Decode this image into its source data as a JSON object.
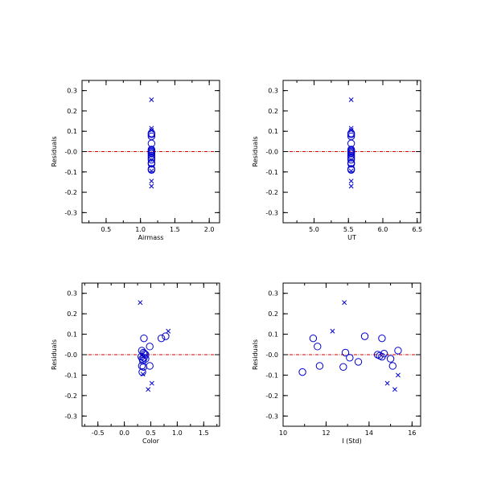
{
  "colors": {
    "marker": "#0000cc",
    "zero_line": "#cc0000",
    "axis": "#000000"
  },
  "chart_data": [
    {
      "type": "scatter",
      "xlabel": "Airmass",
      "ylabel": "Residuals",
      "xlim": [
        0.15,
        2.15
      ],
      "ylim": [
        -0.35,
        0.35
      ],
      "xticks": [
        "0.5",
        "1.0",
        "1.5",
        "2.0"
      ],
      "yticks": [
        "-0.3",
        "-0.2",
        "-0.1",
        "-0.0",
        "0.1",
        "0.2",
        "0.3"
      ],
      "zero_line": 0,
      "series": [
        {
          "marker": "circle",
          "points": [
            [
              1.16,
              0.085
            ],
            [
              1.16,
              0.075
            ],
            [
              1.16,
              0.04
            ],
            [
              1.16,
              0.01
            ],
            [
              1.16,
              0.005
            ],
            [
              1.16,
              0.0
            ],
            [
              1.16,
              -0.005
            ],
            [
              1.16,
              -0.01
            ],
            [
              1.16,
              -0.02
            ],
            [
              1.16,
              -0.04
            ],
            [
              1.16,
              -0.055
            ],
            [
              1.16,
              -0.06
            ],
            [
              1.16,
              -0.085
            ],
            [
              1.16,
              -0.09
            ],
            [
              1.16,
              0.09
            ],
            [
              1.16,
              -0.03
            ]
          ]
        },
        {
          "marker": "x",
          "points": [
            [
              1.16,
              0.255
            ],
            [
              1.16,
              0.115
            ],
            [
              1.16,
              0.105
            ],
            [
              1.16,
              -0.095
            ],
            [
              1.16,
              -0.145
            ],
            [
              1.16,
              -0.17
            ]
          ]
        }
      ]
    },
    {
      "type": "scatter",
      "xlabel": "UT",
      "ylabel": "Residuals",
      "xlim": [
        4.55,
        6.55
      ],
      "ylim": [
        -0.35,
        0.35
      ],
      "xticks": [
        "5.0",
        "5.5",
        "6.0",
        "6.5"
      ],
      "yticks": [
        "-0.3",
        "-0.2",
        "-0.1",
        "-0.0",
        "0.1",
        "0.2",
        "0.3"
      ],
      "zero_line": 0,
      "series": [
        {
          "marker": "circle",
          "points": [
            [
              5.54,
              0.085
            ],
            [
              5.54,
              0.075
            ],
            [
              5.54,
              0.04
            ],
            [
              5.54,
              0.01
            ],
            [
              5.54,
              0.005
            ],
            [
              5.54,
              0.0
            ],
            [
              5.54,
              -0.005
            ],
            [
              5.54,
              -0.01
            ],
            [
              5.54,
              -0.02
            ],
            [
              5.54,
              -0.04
            ],
            [
              5.54,
              -0.055
            ],
            [
              5.54,
              -0.06
            ],
            [
              5.54,
              -0.085
            ],
            [
              5.54,
              -0.09
            ],
            [
              5.54,
              0.09
            ],
            [
              5.54,
              -0.03
            ]
          ]
        },
        {
          "marker": "x",
          "points": [
            [
              5.54,
              0.255
            ],
            [
              5.54,
              0.115
            ],
            [
              5.54,
              0.105
            ],
            [
              5.54,
              -0.095
            ],
            [
              5.54,
              -0.145
            ],
            [
              5.54,
              -0.17
            ]
          ]
        }
      ]
    },
    {
      "type": "scatter",
      "xlabel": "Color",
      "ylabel": "Residuals",
      "xlim": [
        -0.8,
        1.8
      ],
      "ylim": [
        -0.35,
        0.35
      ],
      "xticks": [
        "-0.5",
        "0.0",
        "0.5",
        "1.0",
        "1.5"
      ],
      "yticks": [
        "-0.3",
        "-0.2",
        "-0.1",
        "-0.0",
        "0.1",
        "0.2",
        "0.3"
      ],
      "zero_line": 0,
      "series": [
        {
          "marker": "circle",
          "points": [
            [
              0.37,
              0.08
            ],
            [
              0.7,
              0.08
            ],
            [
              0.78,
              0.09
            ],
            [
              0.48,
              0.04
            ],
            [
              0.33,
              0.02
            ],
            [
              0.36,
              0.01
            ],
            [
              0.38,
              0.005
            ],
            [
              0.4,
              0.0
            ],
            [
              0.32,
              -0.01
            ],
            [
              0.34,
              -0.02
            ],
            [
              0.37,
              -0.015
            ],
            [
              0.35,
              -0.03
            ],
            [
              0.33,
              -0.055
            ],
            [
              0.36,
              -0.06
            ],
            [
              0.48,
              -0.055
            ],
            [
              0.34,
              -0.085
            ],
            [
              0.4,
              -0.02
            ]
          ]
        },
        {
          "marker": "x",
          "points": [
            [
              0.3,
              0.255
            ],
            [
              0.83,
              0.115
            ],
            [
              0.45,
              -0.17
            ],
            [
              0.52,
              -0.14
            ],
            [
              0.35,
              -0.095
            ]
          ]
        }
      ]
    },
    {
      "type": "scatter",
      "xlabel": "I (Std)",
      "ylabel": "Residuals",
      "xlim": [
        10,
        16.4
      ],
      "ylim": [
        -0.35,
        0.35
      ],
      "xticks": [
        "10",
        "12",
        "14",
        "16"
      ],
      "yticks": [
        "-0.3",
        "-0.2",
        "-0.1",
        "-0.0",
        "0.1",
        "0.2",
        "0.3"
      ],
      "zero_line": 0,
      "series": [
        {
          "marker": "circle",
          "points": [
            [
              10.9,
              -0.085
            ],
            [
              11.4,
              0.08
            ],
            [
              11.6,
              0.04
            ],
            [
              11.7,
              -0.055
            ],
            [
              12.8,
              -0.06
            ],
            [
              12.9,
              0.01
            ],
            [
              13.1,
              -0.015
            ],
            [
              13.5,
              -0.035
            ],
            [
              13.8,
              0.09
            ],
            [
              14.4,
              0.0
            ],
            [
              14.5,
              -0.005
            ],
            [
              14.6,
              -0.01
            ],
            [
              14.6,
              0.08
            ],
            [
              14.7,
              0.005
            ],
            [
              15.0,
              -0.02
            ],
            [
              15.1,
              -0.055
            ],
            [
              15.35,
              0.02
            ]
          ]
        },
        {
          "marker": "x",
          "points": [
            [
              12.3,
              0.115
            ],
            [
              12.85,
              0.255
            ],
            [
              14.85,
              -0.14
            ],
            [
              15.2,
              -0.17
            ],
            [
              15.35,
              -0.1
            ]
          ]
        }
      ]
    }
  ]
}
